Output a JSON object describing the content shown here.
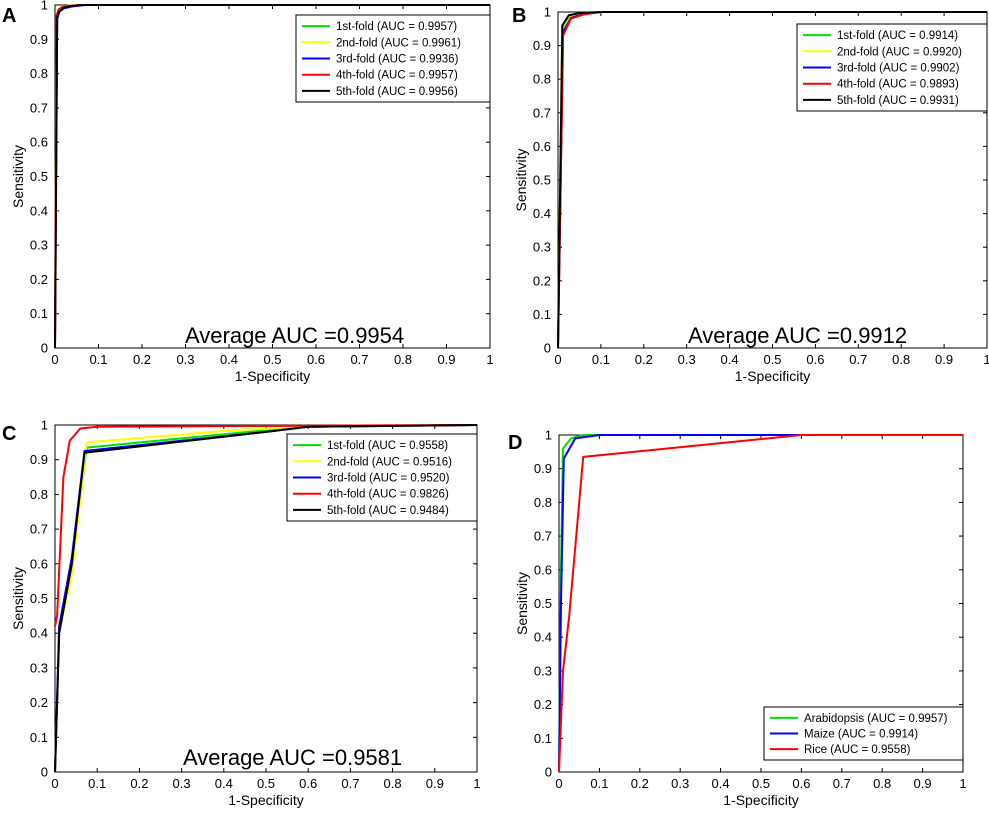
{
  "figure": {
    "panels": [
      "A",
      "B",
      "C",
      "D"
    ]
  },
  "chart_data": [
    {
      "panel": "A",
      "type": "line",
      "xlabel": "1-Specificity",
      "ylabel": "Sensitivity",
      "xlim": [
        0,
        1
      ],
      "ylim": [
        0,
        1
      ],
      "xticks": [
        "0",
        "0.1",
        "0.2",
        "0.3",
        "0.4",
        "0.5",
        "0.6",
        "0.7",
        "0.8",
        "0.9",
        "1"
      ],
      "yticks": [
        "0",
        "0.1",
        "0.2",
        "0.3",
        "0.4",
        "0.5",
        "0.6",
        "0.7",
        "0.8",
        "0.9",
        "1"
      ],
      "legend_position": "top-right",
      "annotation": "Average AUC =0.9954",
      "series": [
        {
          "name": "1st-fold (AUC = 0.9957)",
          "color": "#00e000",
          "x": [
            0,
            0.004,
            0.008,
            0.015,
            0.03,
            0.06,
            1
          ],
          "y": [
            0,
            0.97,
            0.985,
            0.993,
            0.997,
            1,
            1
          ]
        },
        {
          "name": "2nd-fold (AUC = 0.9961)",
          "color": "#ffff00",
          "x": [
            0,
            0.004,
            0.008,
            0.015,
            0.03,
            0.06,
            1
          ],
          "y": [
            0,
            0.972,
            0.987,
            0.994,
            0.998,
            1,
            1
          ]
        },
        {
          "name": "3rd-fold (AUC = 0.9936)",
          "color": "#0000ff",
          "x": [
            0,
            0.005,
            0.01,
            0.02,
            0.04,
            0.07,
            1
          ],
          "y": [
            0,
            0.96,
            0.98,
            0.99,
            0.996,
            1,
            1
          ]
        },
        {
          "name": "4th-fold (AUC = 0.9957)",
          "color": "#ff0000",
          "x": [
            0,
            0.004,
            0.008,
            0.015,
            0.03,
            0.06,
            1
          ],
          "y": [
            0,
            0.97,
            0.986,
            0.993,
            0.997,
            1,
            1
          ]
        },
        {
          "name": "5th-fold (AUC = 0.9956)",
          "color": "#000000",
          "x": [
            0,
            0.005,
            0.01,
            0.02,
            0.035,
            0.06,
            1
          ],
          "y": [
            0,
            0.965,
            0.982,
            0.992,
            0.997,
            1,
            1
          ]
        }
      ]
    },
    {
      "panel": "B",
      "type": "line",
      "xlabel": "1-Specificity",
      "ylabel": "Sensitivity",
      "xlim": [
        0,
        1
      ],
      "ylim": [
        0,
        1
      ],
      "xticks": [
        "0",
        "0.1",
        "0.2",
        "0.3",
        "0.4",
        "0.5",
        "0.6",
        "0.7",
        "0.8",
        "0.9",
        "1"
      ],
      "yticks": [
        "0",
        "0.1",
        "0.2",
        "0.3",
        "0.4",
        "0.5",
        "0.6",
        "0.7",
        "0.8",
        "0.9",
        "1"
      ],
      "legend_position": "top-right",
      "annotation": "Average AUC =0.9912",
      "series": [
        {
          "name": "1st-fold (AUC = 0.9914)",
          "color": "#00e000",
          "x": [
            0,
            0.01,
            0.025,
            0.05,
            0.1,
            1
          ],
          "y": [
            0,
            0.95,
            0.985,
            0.995,
            1,
            1
          ]
        },
        {
          "name": "2nd-fold (AUC = 0.9920)",
          "color": "#ffff00",
          "x": [
            0,
            0.01,
            0.025,
            0.05,
            0.1,
            1
          ],
          "y": [
            0,
            0.955,
            0.987,
            0.996,
            1,
            1
          ]
        },
        {
          "name": "3rd-fold (AUC = 0.9902)",
          "color": "#0000ff",
          "x": [
            0,
            0.012,
            0.03,
            0.06,
            0.1,
            1
          ],
          "y": [
            0,
            0.94,
            0.982,
            0.994,
            1,
            1
          ]
        },
        {
          "name": "4th-fold (AUC = 0.9893)",
          "color": "#ff0000",
          "x": [
            0,
            0.012,
            0.03,
            0.06,
            0.1,
            1
          ],
          "y": [
            0,
            0.93,
            0.98,
            0.993,
            1,
            1
          ]
        },
        {
          "name": "5th-fold (AUC = 0.9931)",
          "color": "#000000",
          "x": [
            0,
            0.01,
            0.025,
            0.05,
            0.1,
            1
          ],
          "y": [
            0,
            0.96,
            0.99,
            0.997,
            1,
            1
          ]
        }
      ]
    },
    {
      "panel": "C",
      "type": "line",
      "xlabel": "1-Specificity",
      "ylabel": "Sensitivity",
      "xlim": [
        0,
        1
      ],
      "ylim": [
        0,
        1
      ],
      "xticks": [
        "0",
        "0.1",
        "0.2",
        "0.3",
        "0.4",
        "0.5",
        "0.6",
        "0.7",
        "0.8",
        "0.9",
        "1"
      ],
      "yticks": [
        "0",
        "0.1",
        "0.2",
        "0.3",
        "0.4",
        "0.5",
        "0.6",
        "0.7",
        "0.8",
        "0.9",
        "1"
      ],
      "legend_position": "top-right",
      "annotation": "Average AUC =0.9581",
      "series": [
        {
          "name": "1st-fold (AUC = 0.9558)",
          "color": "#00e000",
          "x": [
            0,
            0.01,
            0.04,
            0.075,
            0.5,
            0.6,
            1
          ],
          "y": [
            0,
            0.42,
            0.6,
            0.935,
            0.985,
            0.995,
            1
          ]
        },
        {
          "name": "2nd-fold (AUC = 0.9516)",
          "color": "#ffff00",
          "x": [
            0,
            0.01,
            0.04,
            0.075,
            0.42,
            0.6,
            1
          ],
          "y": [
            0,
            0.4,
            0.57,
            0.95,
            0.985,
            0.995,
            1
          ]
        },
        {
          "name": "3rd-fold (AUC = 0.9520)",
          "color": "#0000ff",
          "x": [
            0,
            0.01,
            0.04,
            0.07,
            0.5,
            0.6,
            1
          ],
          "y": [
            0,
            0.42,
            0.62,
            0.925,
            0.98,
            0.995,
            1
          ]
        },
        {
          "name": "4th-fold (AUC = 0.9826)",
          "color": "#ff0000",
          "x": [
            0,
            0.005,
            0.02,
            0.035,
            0.06,
            0.1,
            1
          ],
          "y": [
            0.42,
            0.45,
            0.85,
            0.955,
            0.99,
            0.995,
            1
          ]
        },
        {
          "name": "5th-fold (AUC = 0.9484)",
          "color": "#000000",
          "x": [
            0,
            0.01,
            0.04,
            0.07,
            0.5,
            0.6,
            1
          ],
          "y": [
            0,
            0.4,
            0.6,
            0.92,
            0.98,
            0.995,
            1
          ]
        }
      ]
    },
    {
      "panel": "D",
      "type": "line",
      "xlabel": "1-Specificity",
      "ylabel": "Sensitivity",
      "xlim": [
        0,
        1
      ],
      "ylim": [
        0,
        1
      ],
      "xticks": [
        "0",
        "0.1",
        "0.2",
        "0.3",
        "0.4",
        "0.5",
        "0.6",
        "0.7",
        "0.8",
        "0.9",
        "1"
      ],
      "yticks": [
        "0",
        "0.1",
        "0.2",
        "0.3",
        "0.4",
        "0.5",
        "0.6",
        "0.7",
        "0.8",
        "0.9",
        "1"
      ],
      "legend_position": "bottom-right",
      "annotation": "",
      "series": [
        {
          "name": "Arabidopsis (AUC = 0.9957)",
          "color": "#00e000",
          "x": [
            0,
            0.005,
            0.01,
            0.03,
            0.06,
            1
          ],
          "y": [
            0,
            0.6,
            0.96,
            0.99,
            1,
            1
          ]
        },
        {
          "name": "Maize (AUC = 0.9914)",
          "color": "#0000ff",
          "x": [
            0,
            0.005,
            0.012,
            0.04,
            0.1,
            1
          ],
          "y": [
            0,
            0.5,
            0.93,
            0.99,
            1,
            1
          ]
        },
        {
          "name": "Rice (AUC = 0.9558)",
          "color": "#ff0000",
          "x": [
            0,
            0.01,
            0.025,
            0.06,
            0.6,
            1
          ],
          "y": [
            0,
            0.3,
            0.46,
            0.935,
            1,
            1
          ]
        }
      ]
    }
  ]
}
